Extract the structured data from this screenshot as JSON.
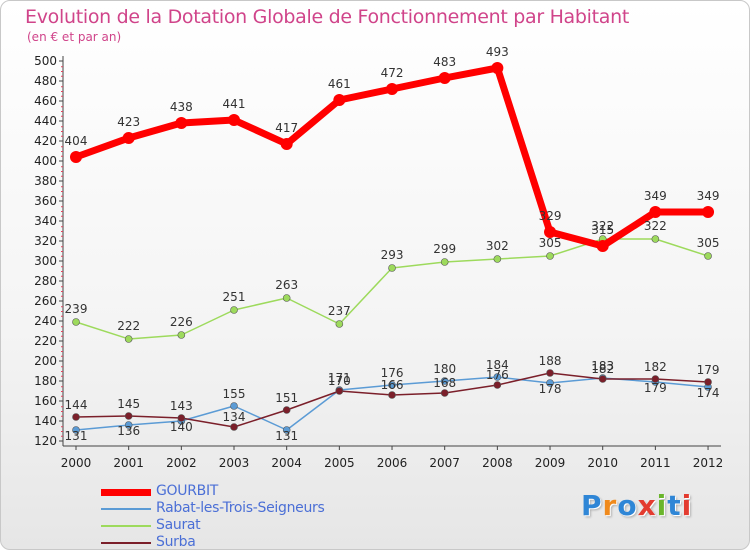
{
  "chart_data": {
    "type": "line",
    "title": "Evolution de la Dotation Globale de Fonctionnement par Habitant",
    "subtitle": "(en € et par an)",
    "x": [
      "2000",
      "2001",
      "2002",
      "2003",
      "2004",
      "2005",
      "2006",
      "2007",
      "2008",
      "2009",
      "2010",
      "2011",
      "2012"
    ],
    "y_ticks": [
      "120",
      "140",
      "160",
      "180",
      "200",
      "220",
      "240",
      "260",
      "280",
      "300",
      "320",
      "340",
      "360",
      "380",
      "400",
      "420",
      "440",
      "460",
      "480",
      "500"
    ],
    "ylim": [
      120,
      500
    ],
    "grid": false,
    "legend_placement": "bottom-left",
    "series": [
      {
        "name": "GOURBIT",
        "color": "#ff0000",
        "values": [
          404,
          423,
          438,
          441,
          417,
          461,
          472,
          483,
          493,
          329,
          315,
          349,
          349
        ]
      },
      {
        "name": "Rabat-les-Trois-Seigneurs",
        "color": "#5b9bd5",
        "values": [
          131,
          136,
          140,
          155,
          131,
          171,
          176,
          180,
          184,
          178,
          183,
          179,
          174
        ]
      },
      {
        "name": "Saurat",
        "color": "#9dda5c",
        "values": [
          239,
          222,
          226,
          251,
          263,
          237,
          293,
          299,
          302,
          305,
          322,
          322,
          305
        ]
      },
      {
        "name": "Surba",
        "color": "#7b1f2a",
        "values": [
          144,
          145,
          143,
          134,
          151,
          170,
          166,
          168,
          176,
          188,
          182,
          182,
          179
        ]
      }
    ]
  },
  "brand": {
    "name": "Proxiti",
    "letters": [
      "P",
      "r",
      "o",
      "x",
      "i",
      "t",
      "i"
    ],
    "colors": [
      "#2f86d6",
      "#f08a1c",
      "#2f86d6",
      "#e33b2f",
      "#6ab52b",
      "#2f86d6",
      "#e33b2f"
    ]
  }
}
